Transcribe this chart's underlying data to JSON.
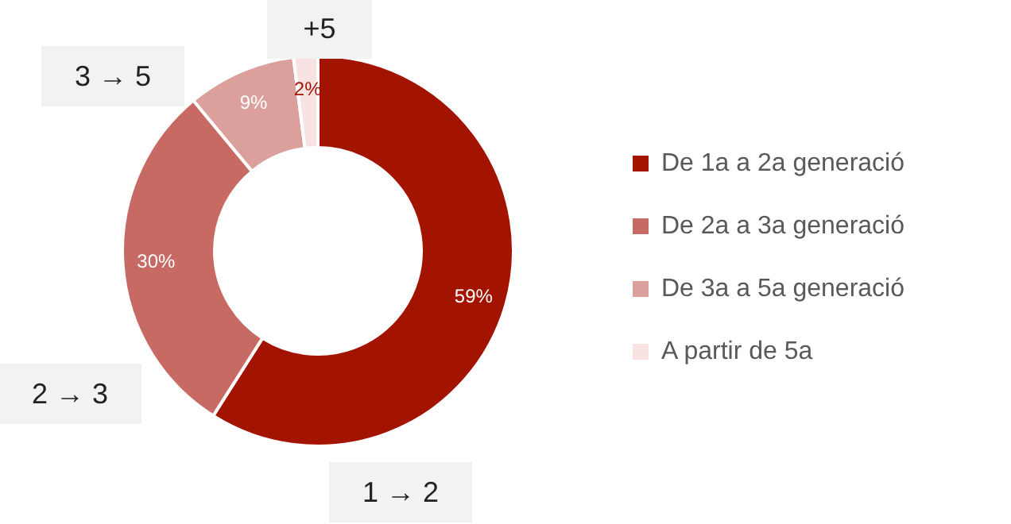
{
  "chart_data": {
    "type": "donut",
    "categories": [
      "De 1a a 2a generació",
      "De 2a a 3a generació",
      "De 3a a 5a generació",
      "A partir de 5a"
    ],
    "values": [
      59,
      30,
      9,
      2
    ],
    "colors": [
      "#a31400",
      "#c86a64",
      "#dca09c",
      "#f8e2e2"
    ],
    "value_labels": [
      "59%",
      "30%",
      "9%",
      "2%"
    ],
    "annotations": [
      "1 → 2",
      "2 → 3",
      "3 → 5",
      "+5"
    ],
    "legend": "right"
  }
}
